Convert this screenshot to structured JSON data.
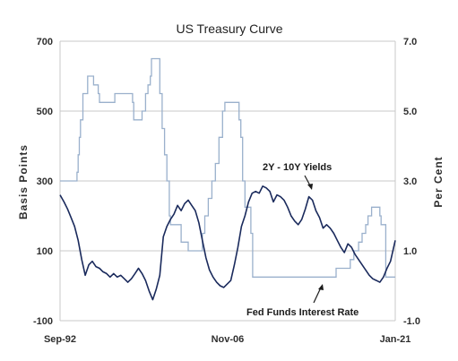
{
  "chart_data": {
    "type": "line",
    "title": "US Treasury Curve",
    "ylabel_left": "Basis Points",
    "ylabel_right": "Per Cent",
    "ylim_left": [
      -100,
      700
    ],
    "ylim_right": [
      -1.0,
      7.0
    ],
    "xlim": [
      1992.67,
      2021.0
    ],
    "left_ticks": [
      "-100",
      "100",
      "300",
      "500",
      "700"
    ],
    "left_tick_values": [
      -100,
      100,
      300,
      500,
      700
    ],
    "right_ticks": [
      "-1.0",
      "1.0",
      "3.0",
      "5.0",
      "7.0"
    ],
    "right_tick_values": [
      -1.0,
      1.0,
      3.0,
      5.0,
      7.0
    ],
    "x_ticks": [
      {
        "label": "Sep-92",
        "value": 1992.67
      },
      {
        "label": "Nov-06",
        "value": 2006.83
      },
      {
        "label": "Jan-21",
        "value": 2021.0
      }
    ],
    "grid": true,
    "series": [
      {
        "name": "2Y - 10Y Yields",
        "axis": "left",
        "color": "#1a2a5c",
        "x": [
          1992.67,
          1993.0,
          1993.3,
          1993.6,
          1993.9,
          1994.2,
          1994.5,
          1994.8,
          1995.1,
          1995.4,
          1995.7,
          1996.0,
          1996.3,
          1996.6,
          1996.9,
          1997.2,
          1997.5,
          1997.8,
          1998.1,
          1998.4,
          1998.7,
          1999.0,
          1999.3,
          1999.6,
          1999.9,
          2000.2,
          2000.5,
          2000.8,
          2001.1,
          2001.4,
          2001.7,
          2002.0,
          2002.3,
          2002.6,
          2002.9,
          2003.2,
          2003.5,
          2003.8,
          2004.1,
          2004.4,
          2004.7,
          2005.0,
          2005.3,
          2005.6,
          2005.9,
          2006.2,
          2006.5,
          2006.8,
          2007.1,
          2007.4,
          2007.7,
          2008.0,
          2008.3,
          2008.6,
          2008.9,
          2009.2,
          2009.5,
          2009.8,
          2010.1,
          2010.4,
          2010.7,
          2011.0,
          2011.3,
          2011.6,
          2011.9,
          2012.2,
          2012.5,
          2012.8,
          2013.1,
          2013.4,
          2013.7,
          2014.0,
          2014.3,
          2014.6,
          2014.9,
          2015.2,
          2015.5,
          2015.8,
          2016.1,
          2016.4,
          2016.7,
          2017.0,
          2017.3,
          2017.6,
          2017.9,
          2018.2,
          2018.5,
          2018.8,
          2019.1,
          2019.4,
          2019.7,
          2020.0,
          2020.3,
          2020.6,
          2020.9,
          2021.0
        ],
        "values": [
          260,
          240,
          220,
          195,
          170,
          130,
          75,
          30,
          60,
          70,
          55,
          50,
          40,
          35,
          25,
          35,
          25,
          30,
          20,
          10,
          20,
          35,
          50,
          35,
          15,
          -15,
          -40,
          -10,
          30,
          140,
          170,
          190,
          205,
          230,
          215,
          235,
          245,
          230,
          215,
          180,
          130,
          80,
          45,
          25,
          10,
          0,
          -5,
          5,
          15,
          60,
          110,
          170,
          200,
          240,
          265,
          270,
          265,
          285,
          280,
          270,
          240,
          260,
          255,
          245,
          225,
          200,
          185,
          175,
          190,
          220,
          255,
          245,
          215,
          195,
          165,
          175,
          165,
          150,
          130,
          110,
          95,
          120,
          110,
          90,
          75,
          60,
          45,
          30,
          20,
          15,
          10,
          25,
          50,
          70,
          115,
          130
        ]
      },
      {
        "name": "Fed Funds Interest Rate",
        "axis": "right",
        "color": "#9ab0cc",
        "x": [
          1992.67,
          1994.0,
          1994.1,
          1994.2,
          1994.3,
          1994.4,
          1994.6,
          1994.8,
          1995.0,
          1995.5,
          1995.9,
          1996.0,
          1997.2,
          1997.3,
          1998.7,
          1998.8,
          1998.9,
          1999.5,
          1999.6,
          1999.9,
          2000.1,
          2000.3,
          2000.4,
          2001.0,
          2001.1,
          2001.3,
          2001.5,
          2001.7,
          2001.9,
          2002.0,
          2002.9,
          2003.5,
          2004.5,
          2004.7,
          2004.9,
          2005.2,
          2005.5,
          2005.8,
          2006.1,
          2006.4,
          2006.6,
          2007.6,
          2007.8,
          2007.95,
          2008.1,
          2008.3,
          2008.8,
          2008.95,
          2015.9,
          2016.0,
          2016.9,
          2017.2,
          2017.5,
          2017.9,
          2018.2,
          2018.5,
          2018.7,
          2019.0,
          2019.5,
          2019.7,
          2019.8,
          2020.2,
          2021.0
        ],
        "values": [
          3.0,
          3.0,
          3.25,
          3.75,
          4.25,
          4.75,
          5.5,
          5.5,
          6.0,
          5.75,
          5.5,
          5.25,
          5.25,
          5.5,
          5.5,
          5.25,
          4.75,
          4.75,
          5.0,
          5.5,
          5.75,
          6.0,
          6.5,
          6.5,
          5.5,
          4.5,
          3.75,
          3.0,
          2.0,
          1.75,
          1.25,
          1.0,
          1.0,
          1.5,
          2.0,
          2.5,
          3.0,
          3.5,
          4.25,
          5.0,
          5.25,
          5.25,
          4.75,
          4.25,
          3.0,
          2.25,
          1.5,
          0.25,
          0.25,
          0.5,
          0.5,
          0.75,
          1.0,
          1.25,
          1.5,
          1.75,
          2.0,
          2.25,
          2.25,
          2.0,
          1.75,
          0.25,
          0.25
        ]
      }
    ],
    "annotations": [
      {
        "text": "2Y - 10Y Yields",
        "points_to": "2Y - 10Y Yields"
      },
      {
        "text": "Fed Funds Interest Rate",
        "points_to": "Fed Funds Interest Rate"
      }
    ]
  }
}
